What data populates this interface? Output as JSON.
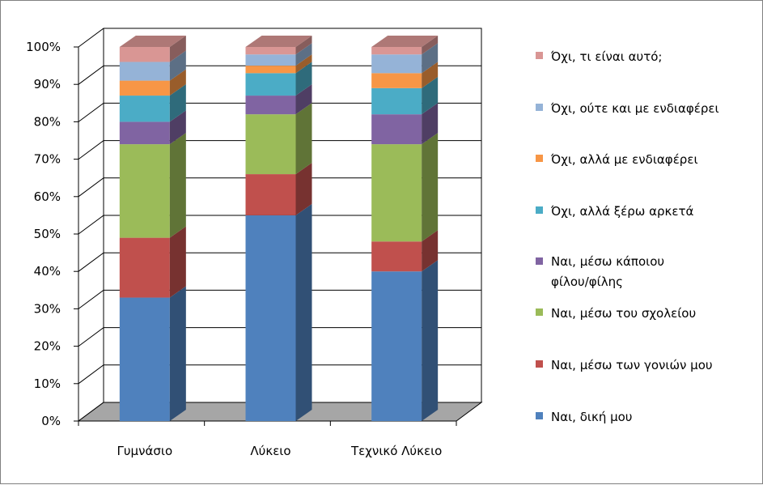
{
  "chart_data": {
    "type": "bar",
    "stacked": true,
    "three_d": true,
    "title": "",
    "xlabel": "",
    "ylabel": "",
    "ylim": [
      0,
      100
    ],
    "y_ticks": [
      "0%",
      "10%",
      "20%",
      "30%",
      "40%",
      "50%",
      "60%",
      "70%",
      "80%",
      "90%",
      "100%"
    ],
    "categories": [
      "Γυμνάσιο",
      "Λύκειο",
      "Τεχνικό Λύκειο"
    ],
    "legend_position": "right",
    "series": [
      {
        "name": "Ναι, δική μου",
        "color": "#4F81BD",
        "values": [
          33,
          55,
          40
        ]
      },
      {
        "name": "Ναι, μέσω των γονιών μου",
        "color": "#C0504D",
        "values": [
          16,
          11,
          8
        ]
      },
      {
        "name": "Ναι, μέσω του σχολείου",
        "color": "#9BBB59",
        "values": [
          25,
          16,
          26
        ]
      },
      {
        "name": "Ναι, μέσω κάποιου φίλου/φίλης",
        "color": "#8064A2",
        "values": [
          6,
          5,
          8
        ]
      },
      {
        "name": "Όχι, αλλά ξέρω αρκετά",
        "color": "#4BACC6",
        "values": [
          7,
          6,
          7
        ]
      },
      {
        "name": "Όχι, αλλά με ενδιαφέρει",
        "color": "#F79646",
        "values": [
          4,
          2,
          4
        ]
      },
      {
        "name": "Όχι, ούτε και με ενδιαφέρει",
        "color": "#95B3D7",
        "values": [
          5,
          3,
          5
        ]
      },
      {
        "name": "Όχι, τι είναι αυτό;",
        "color": "#D99694",
        "values": [
          4,
          2,
          2
        ]
      }
    ]
  }
}
